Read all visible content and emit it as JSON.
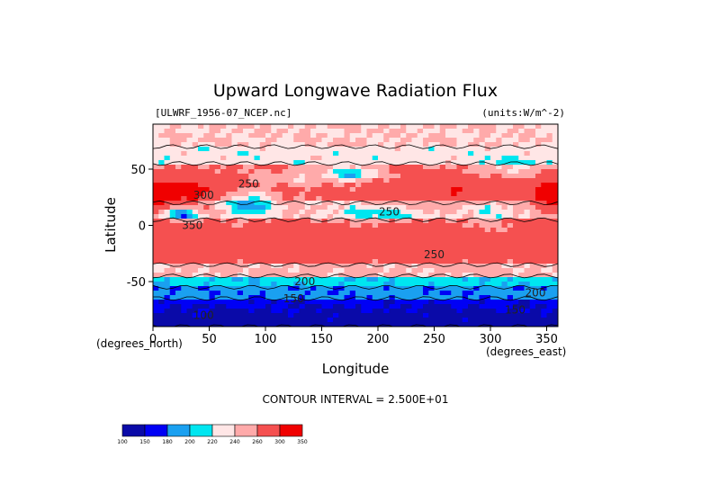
{
  "chart_data": {
    "type": "heatmap",
    "title": "Upward Longwave Radiation Flux",
    "file_label": "[ULWRF_1956-07_NCEP.nc]",
    "units_label": "(units:W/m^-2)",
    "xlabel": "Longitude",
    "ylabel": "Latitude",
    "x_unit_label": "(degrees_east)",
    "y_unit_label": "(degrees_north)",
    "xlim": [
      0,
      360
    ],
    "ylim": [
      -90,
      90
    ],
    "x_ticks": [
      "0",
      "50",
      "100",
      "150",
      "200",
      "250",
      "300",
      "350"
    ],
    "y_ticks": [
      "50",
      "0",
      "-50"
    ],
    "contour_interval_label": "CONTOUR INTERVAL = 2.500E+01",
    "contour_labels": [
      {
        "text": "300",
        "x": 45,
        "y": 27
      },
      {
        "text": "250",
        "x": 85,
        "y": 37
      },
      {
        "text": "350",
        "x": 35,
        "y": 0
      },
      {
        "text": "250",
        "x": 210,
        "y": 12
      },
      {
        "text": "250",
        "x": 250,
        "y": -26
      },
      {
        "text": "200",
        "x": 135,
        "y": -50
      },
      {
        "text": "150",
        "x": 125,
        "y": -65
      },
      {
        "text": "100",
        "x": 45,
        "y": -80
      },
      {
        "text": "200",
        "x": 340,
        "y": -60
      },
      {
        "text": "150",
        "x": 322,
        "y": -75
      }
    ],
    "colorbar": {
      "levels": [
        "100",
        "150",
        "180",
        "200",
        "220",
        "240",
        "260",
        "300",
        "350"
      ],
      "colors": [
        "#0a0aa8",
        "#0000f5",
        "#1aa0f0",
        "#00e6f0",
        "#ffe6e6",
        "#ffaaaa",
        "#f55050",
        "#f00000"
      ]
    },
    "field_description_bands": [
      {
        "lat_from": 90,
        "lat_to": 70,
        "level": 240
      },
      {
        "lat_from": 70,
        "lat_to": 55,
        "level": 220
      },
      {
        "lat_from": 55,
        "lat_to": 20,
        "level": 280
      },
      {
        "lat_from": 20,
        "lat_to": 5,
        "level": 240
      },
      {
        "lat_from": 5,
        "lat_to": -35,
        "level": 280
      },
      {
        "lat_from": -35,
        "lat_to": -45,
        "level": 240
      },
      {
        "lat_from": -45,
        "lat_to": -55,
        "level": 200
      },
      {
        "lat_from": -55,
        "lat_to": -65,
        "level": 180
      },
      {
        "lat_from": -65,
        "lat_to": -90,
        "level": 150
      }
    ]
  }
}
